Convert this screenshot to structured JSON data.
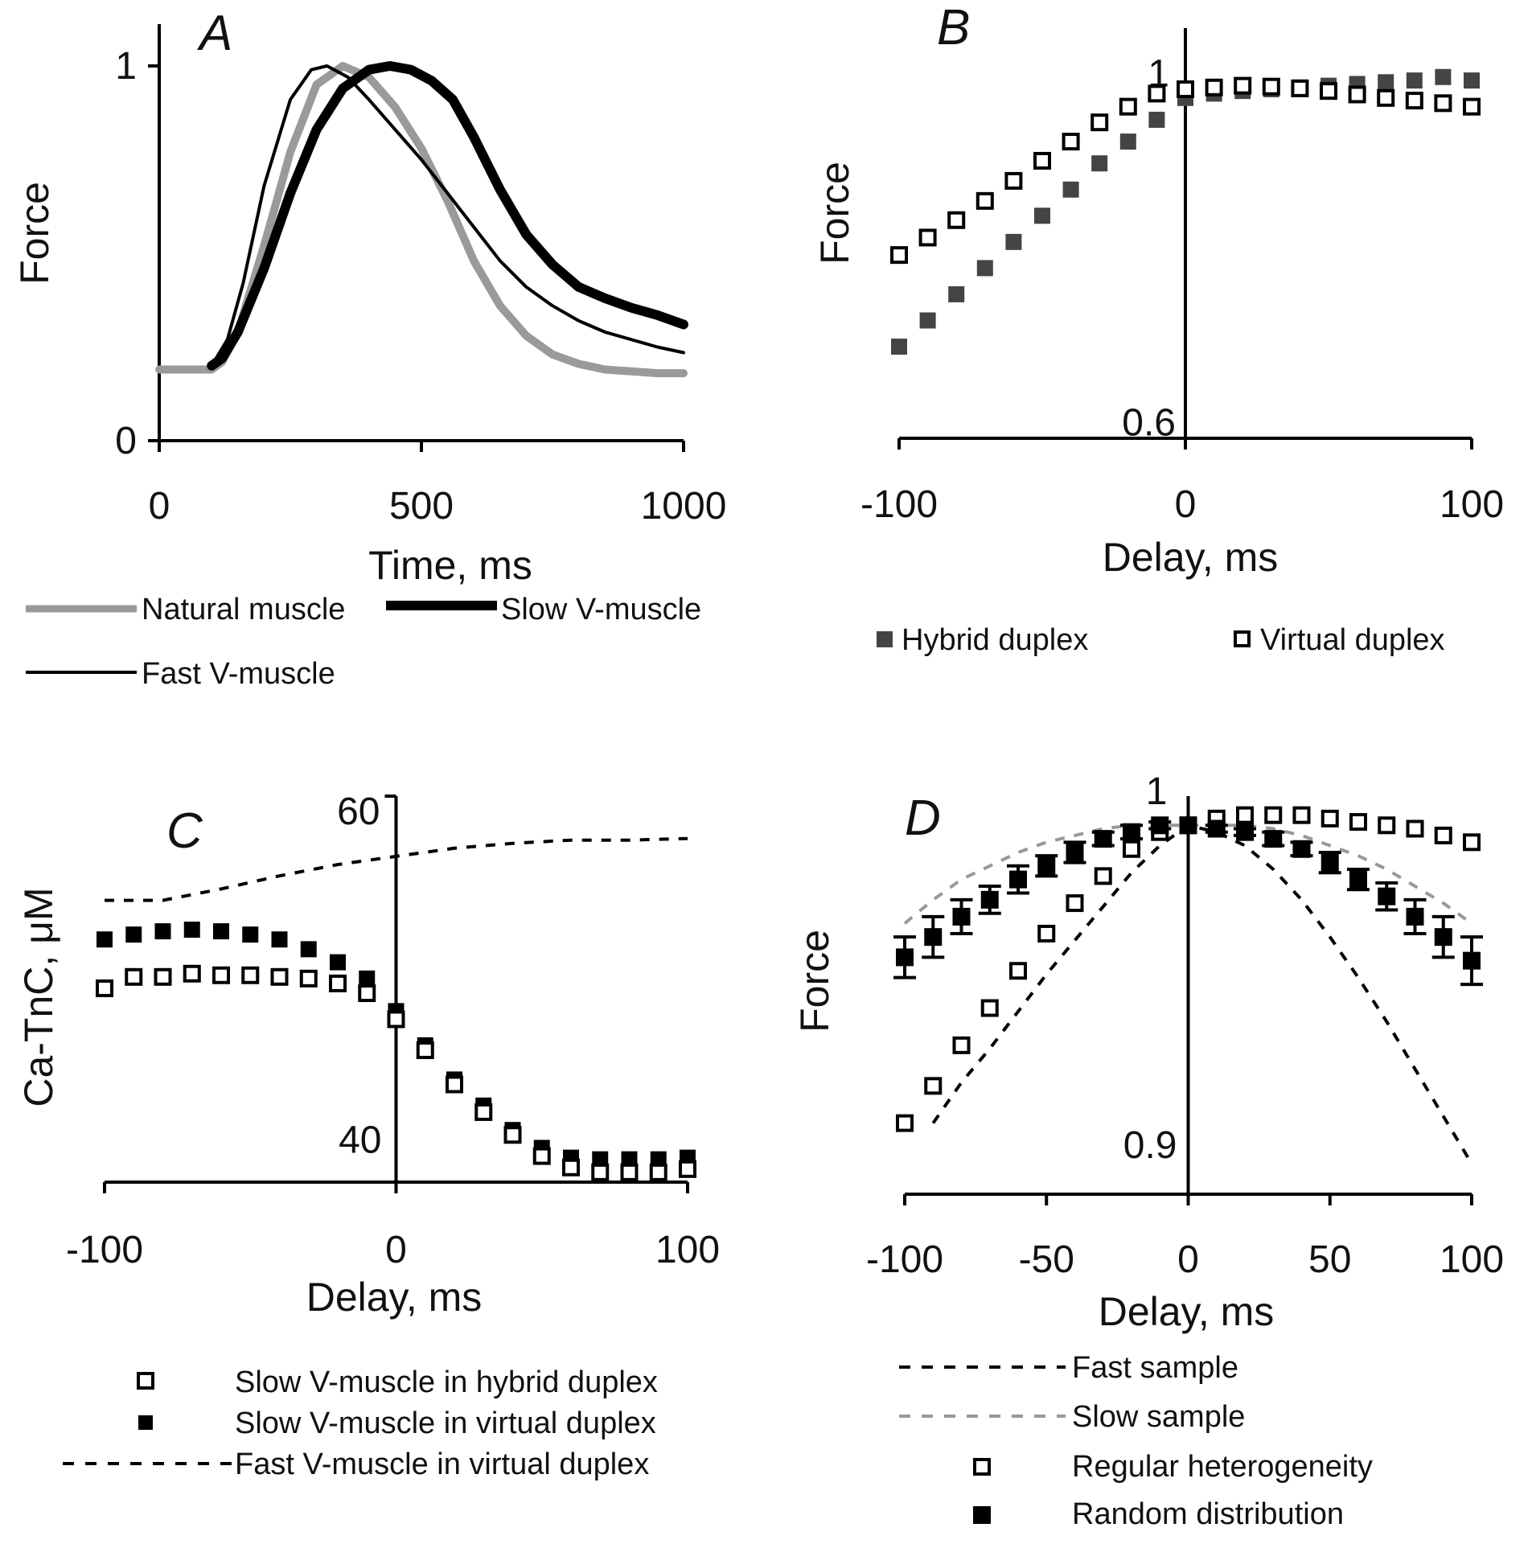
{
  "chart_data": [
    {
      "panel": "A",
      "type": "line",
      "xlabel": "Time, ms",
      "ylabel": "Force",
      "xlim": [
        0,
        1000
      ],
      "ylim": [
        0,
        1
      ],
      "xticks": [
        "0",
        "500",
        "1000"
      ],
      "yticks": [
        "0",
        "1"
      ],
      "series": [
        {
          "name": "Natural muscle",
          "color": "#9a9a9a",
          "style": "thick",
          "x": [
            0,
            100,
            120,
            150,
            200,
            250,
            300,
            350,
            400,
            450,
            500,
            550,
            600,
            650,
            700,
            750,
            800,
            850,
            900,
            950,
            1000
          ],
          "y": [
            0.19,
            0.19,
            0.21,
            0.29,
            0.52,
            0.77,
            0.95,
            1.0,
            0.97,
            0.89,
            0.78,
            0.64,
            0.48,
            0.36,
            0.28,
            0.23,
            0.205,
            0.19,
            0.185,
            0.18,
            0.18
          ]
        },
        {
          "name": "Slow V-muscle",
          "color": "#000000",
          "style": "thicker",
          "x": [
            100,
            120,
            150,
            200,
            250,
            300,
            350,
            400,
            440,
            480,
            520,
            560,
            600,
            650,
            700,
            750,
            800,
            850,
            900,
            950,
            1000
          ],
          "y": [
            0.2,
            0.22,
            0.29,
            0.46,
            0.66,
            0.83,
            0.94,
            0.99,
            1.0,
            0.99,
            0.96,
            0.91,
            0.81,
            0.67,
            0.55,
            0.47,
            0.41,
            0.38,
            0.355,
            0.335,
            0.31
          ]
        },
        {
          "name": "Fast V-muscle",
          "color": "#000000",
          "style": "thin",
          "x": [
            100,
            130,
            160,
            200,
            250,
            290,
            320,
            360,
            400,
            450,
            500,
            550,
            600,
            650,
            700,
            750,
            800,
            850,
            900,
            950,
            1000
          ],
          "y": [
            0.2,
            0.27,
            0.42,
            0.68,
            0.91,
            0.99,
            1.0,
            0.97,
            0.91,
            0.83,
            0.75,
            0.66,
            0.57,
            0.48,
            0.41,
            0.36,
            0.32,
            0.29,
            0.27,
            0.25,
            0.235
          ]
        }
      ]
    },
    {
      "panel": "B",
      "type": "scatter",
      "xlabel": "Delay, ms",
      "ylabel": "Force",
      "xlim": [
        -100,
        100
      ],
      "ylim": [
        0.58,
        1.05
      ],
      "xticks": [
        "-100",
        "0",
        "100"
      ],
      "yticks": [
        "0.6",
        "1"
      ],
      "x": [
        -100,
        -90,
        -80,
        -70,
        -60,
        -50,
        -40,
        -30,
        -20,
        -10,
        0,
        10,
        20,
        30,
        40,
        50,
        60,
        70,
        80,
        90,
        100
      ],
      "series": [
        {
          "name": "Hybrid duplex",
          "marker": "filled-gray",
          "values": [
            0.685,
            0.715,
            0.745,
            0.775,
            0.805,
            0.835,
            0.865,
            0.895,
            0.92,
            0.945,
            0.97,
            0.975,
            0.978,
            0.98,
            0.982,
            0.984,
            0.986,
            0.988,
            0.99,
            0.994,
            0.99
          ]
        },
        {
          "name": "Virtual duplex",
          "marker": "open",
          "values": [
            0.79,
            0.81,
            0.83,
            0.852,
            0.875,
            0.898,
            0.92,
            0.942,
            0.96,
            0.975,
            0.98,
            0.982,
            0.984,
            0.983,
            0.981,
            0.978,
            0.974,
            0.97,
            0.967,
            0.964,
            0.96
          ]
        }
      ]
    },
    {
      "panel": "C",
      "type": "scatter",
      "xlabel": "Delay, ms",
      "ylabel": "Ca-TnC, μM",
      "xlim": [
        -100,
        100
      ],
      "ylim": [
        37.3,
        61
      ],
      "xticks": [
        "-100",
        "0",
        "100"
      ],
      "yticks": [
        "40",
        "60"
      ],
      "x": [
        -100,
        -90,
        -80,
        -70,
        -60,
        -50,
        -40,
        -30,
        -20,
        -10,
        0,
        10,
        20,
        30,
        40,
        50,
        60,
        70,
        80,
        90,
        100
      ],
      "series": [
        {
          "name": "Slow V-muscle in hybrid duplex",
          "marker": "open",
          "values": [
            49.2,
            49.9,
            49.9,
            50.1,
            50.0,
            50.0,
            49.9,
            49.8,
            49.5,
            48.9,
            47.3,
            45.4,
            43.3,
            41.6,
            40.2,
            38.9,
            38.2,
            37.9,
            37.9,
            37.9,
            38.1
          ]
        },
        {
          "name": "Slow V-muscle in virtual duplex",
          "marker": "filled",
          "values": [
            52.2,
            52.5,
            52.7,
            52.8,
            52.7,
            52.5,
            52.2,
            51.6,
            50.8,
            49.8,
            47.8,
            45.7,
            43.6,
            42.0,
            40.5,
            39.4,
            38.8,
            38.7,
            38.7,
            38.7,
            38.8
          ]
        },
        {
          "name": "Fast V-muscle in virtual duplex",
          "style": "dashed",
          "x": [
            -100,
            -80,
            -60,
            -40,
            -20,
            0,
            20,
            40,
            60,
            80,
            100
          ],
          "values": [
            54.6,
            54.6,
            55.3,
            56.1,
            56.8,
            57.3,
            57.8,
            58.1,
            58.3,
            58.3,
            58.4
          ]
        }
      ]
    },
    {
      "panel": "D",
      "type": "scatter",
      "xlabel": "Delay, ms",
      "ylabel": "Force",
      "xlim": [
        -100,
        100
      ],
      "ylim": [
        0.885,
        1.005
      ],
      "xticks": [
        "-100",
        "-50",
        "0",
        "50",
        "100"
      ],
      "yticks": [
        "0.9",
        "1"
      ],
      "x": [
        -100,
        -90,
        -80,
        -70,
        -60,
        -50,
        -40,
        -30,
        -20,
        -10,
        0,
        10,
        20,
        30,
        40,
        50,
        60,
        70,
        80,
        90,
        100
      ],
      "series": [
        {
          "name": "Fast sample",
          "style": "dashed-black",
          "x": [
            -90,
            -80,
            -70,
            -60,
            -50,
            -40,
            -30,
            -20,
            -10,
            0,
            10,
            20,
            30,
            40,
            50,
            60,
            70,
            80,
            90,
            100
          ],
          "values": [
            0.906,
            0.918,
            0.928,
            0.939,
            0.95,
            0.96,
            0.97,
            0.98,
            0.988,
            0.994,
            0.992,
            0.988,
            0.981,
            0.972,
            0.961,
            0.949,
            0.936,
            0.922,
            0.908,
            0.894
          ]
        },
        {
          "name": "Slow sample",
          "style": "dashed-gray",
          "x": [
            -100,
            -90,
            -80,
            -70,
            -60,
            -50,
            -40,
            -30,
            -20,
            -10,
            0,
            10,
            20,
            30,
            40,
            50,
            60,
            70,
            80,
            90,
            100
          ],
          "values": [
            0.965,
            0.972,
            0.978,
            0.982,
            0.986,
            0.989,
            0.991,
            0.993,
            0.994,
            0.994,
            0.994,
            0.994,
            0.994,
            0.993,
            0.991,
            0.988,
            0.985,
            0.981,
            0.976,
            0.971,
            0.965
          ]
        },
        {
          "name": "Regular heterogeneity",
          "marker": "open",
          "values": [
            0.906,
            0.917,
            0.929,
            0.94,
            0.951,
            0.962,
            0.971,
            0.979,
            0.987,
            0.992,
            0.994,
            0.996,
            0.997,
            0.997,
            0.997,
            0.996,
            0.995,
            0.994,
            0.993,
            0.991,
            0.989
          ]
        },
        {
          "name": "Random distribution",
          "marker": "filled",
          "values": [
            0.955,
            0.961,
            0.967,
            0.972,
            0.978,
            0.982,
            0.986,
            0.99,
            0.992,
            0.994,
            0.994,
            0.993,
            0.992,
            0.99,
            0.987,
            0.983,
            0.978,
            0.973,
            0.967,
            0.961,
            0.954
          ],
          "errors": [
            0.006,
            0.006,
            0.005,
            0.004,
            0.004,
            0.003,
            0.003,
            0.002,
            0.002,
            0.001,
            0.0,
            0.001,
            0.001,
            0.002,
            0.002,
            0.003,
            0.003,
            0.004,
            0.005,
            0.006,
            0.007
          ]
        }
      ]
    }
  ]
}
